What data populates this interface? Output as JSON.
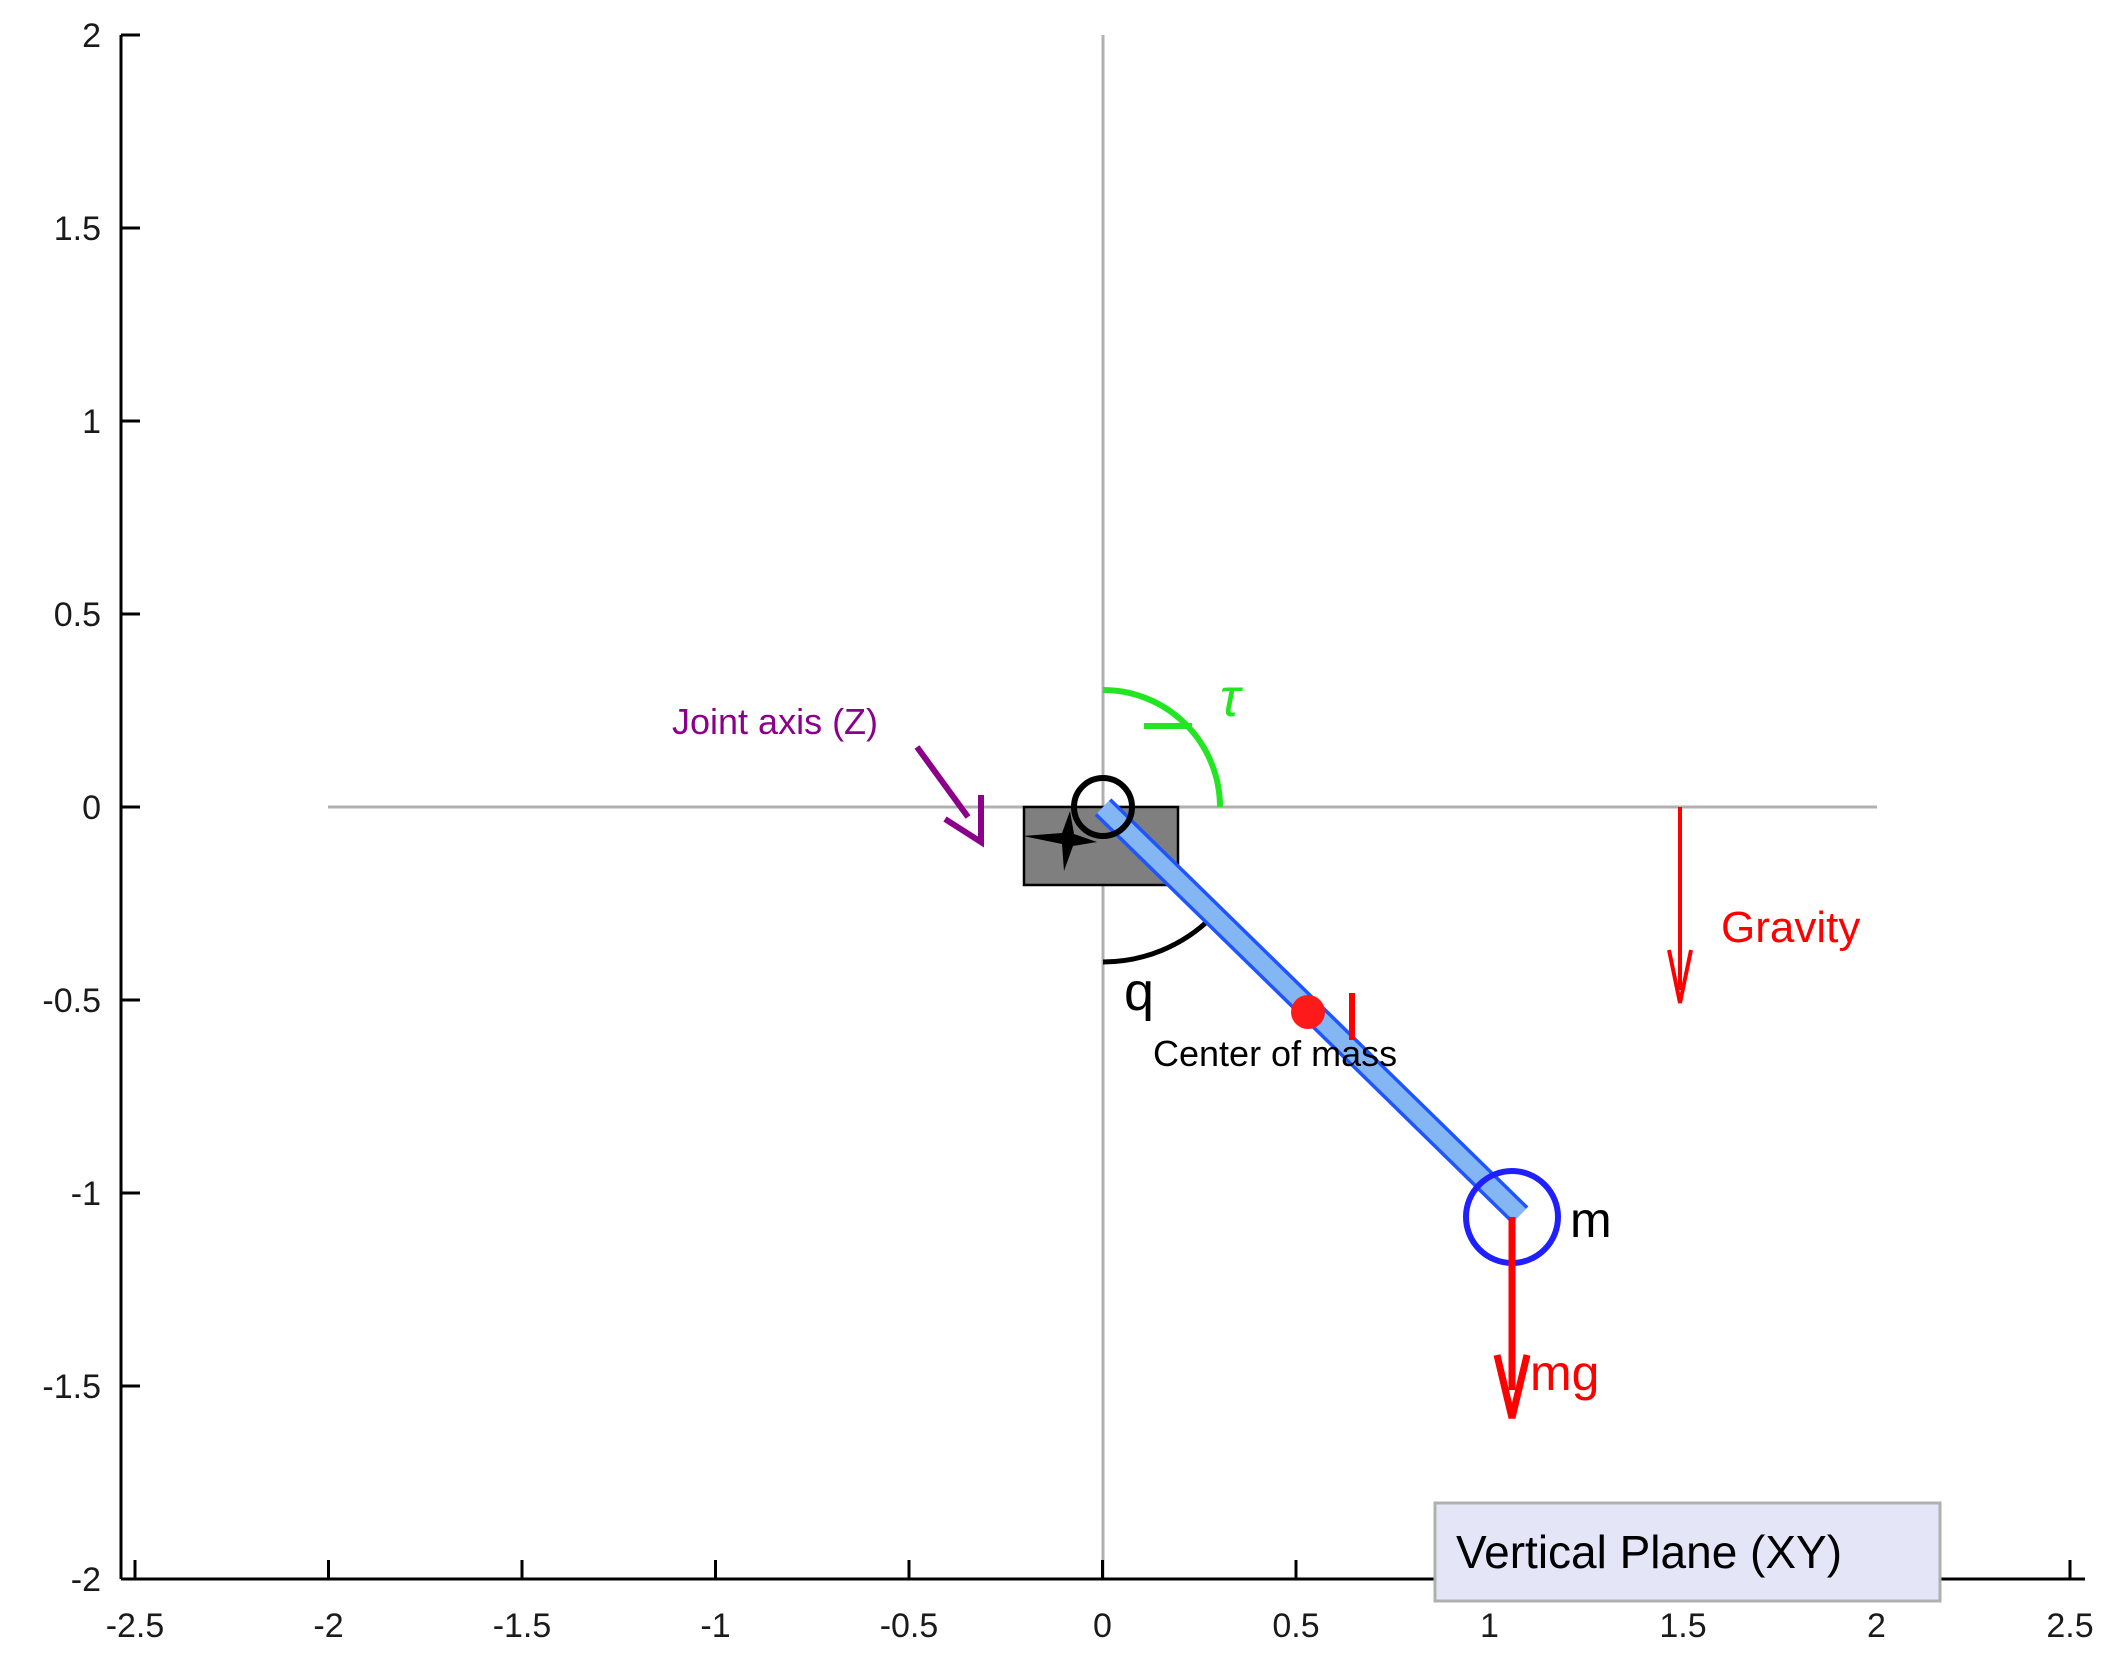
{
  "plot": {
    "xlim": [
      -2.5,
      2.5
    ],
    "ylim": [
      -2,
      2
    ],
    "x_ticks": [
      "-2.5",
      "-2",
      "-1.5",
      "-1",
      "-0.5",
      "0",
      "0.5",
      "1",
      "1.5",
      "2",
      "2.5"
    ],
    "y_ticks": [
      "2",
      "1.5",
      "1",
      "0.5",
      "0",
      "-0.5",
      "-1",
      "-1.5",
      "-2"
    ]
  },
  "labels": {
    "torque": "τ",
    "joint_axis": "Joint axis (Z)",
    "gravity": "Gravity",
    "angle": "q",
    "center_of_mass": "Center of mass",
    "length": "l",
    "mass": "m",
    "weight": "mg",
    "plane": "Vertical Plane (XY)"
  },
  "colors": {
    "link": "#1f55ff",
    "link_fill": "#84b6f4",
    "torque": "#22e622",
    "gravity": "#ff0000",
    "joint_axis": "#8b008b",
    "mount": "#808080",
    "plane_box": "#e4e6f8"
  },
  "model": {
    "pivot": [
      0,
      0
    ],
    "center_of_mass": [
      0.53,
      -0.53
    ],
    "end_mass": [
      1.06,
      -1.06
    ],
    "mount_rect": {
      "x": [
        -0.2,
        0.2
      ],
      "y": [
        -0.2,
        0
      ]
    },
    "gravity_arrow": {
      "x": 1.5,
      "from_y": 0,
      "to_y": -0.5
    },
    "weight_arrow": {
      "x": 1.06,
      "from_y": -1.06,
      "to_y": -1.56
    }
  }
}
